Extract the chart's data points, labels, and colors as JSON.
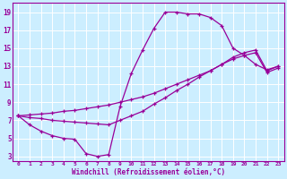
{
  "xlabel": "Windchill (Refroidissement éolien,°C)",
  "bg_color": "#cceeff",
  "grid_color": "#ffffff",
  "line_color": "#990099",
  "xlim": [
    -0.5,
    23.5
  ],
  "ylim": [
    2.5,
    20
  ],
  "xticks": [
    0,
    1,
    2,
    3,
    4,
    5,
    6,
    7,
    8,
    9,
    10,
    11,
    12,
    13,
    14,
    15,
    16,
    17,
    18,
    19,
    20,
    21,
    22,
    23
  ],
  "yticks": [
    3,
    5,
    7,
    9,
    11,
    13,
    15,
    17,
    19
  ],
  "line1_x": [
    0,
    1,
    2,
    3,
    4,
    5,
    6,
    7,
    8,
    9,
    10,
    11,
    12,
    13,
    14,
    15,
    16,
    17,
    18,
    19,
    20,
    21,
    22,
    23
  ],
  "line1_y": [
    7.5,
    6.5,
    5.8,
    5.3,
    5.0,
    4.9,
    3.3,
    3.0,
    3.2,
    8.5,
    12.2,
    14.8,
    17.2,
    19.0,
    19.0,
    18.8,
    18.8,
    18.4,
    17.5,
    15.0,
    14.2,
    13.2,
    12.6,
    13.0
  ],
  "line2_x": [
    0,
    1,
    2,
    3,
    4,
    5,
    6,
    7,
    8,
    9,
    10,
    11,
    12,
    13,
    14,
    15,
    16,
    17,
    18,
    19,
    20,
    21,
    22,
    23
  ],
  "line2_y": [
    7.5,
    7.6,
    7.7,
    7.8,
    8.0,
    8.1,
    8.3,
    8.5,
    8.7,
    9.0,
    9.3,
    9.6,
    10.0,
    10.5,
    11.0,
    11.5,
    12.0,
    12.5,
    13.2,
    14.0,
    14.5,
    14.8,
    12.5,
    13.0
  ],
  "line3_x": [
    0,
    1,
    2,
    3,
    4,
    5,
    6,
    7,
    8,
    9,
    10,
    11,
    12,
    13,
    14,
    15,
    16,
    17,
    18,
    19,
    20,
    21,
    22,
    23
  ],
  "line3_y": [
    7.5,
    7.3,
    7.2,
    7.0,
    6.9,
    6.8,
    6.7,
    6.6,
    6.5,
    7.0,
    7.5,
    8.0,
    8.8,
    9.5,
    10.3,
    11.0,
    11.8,
    12.5,
    13.2,
    13.8,
    14.2,
    14.5,
    12.3,
    12.8
  ]
}
